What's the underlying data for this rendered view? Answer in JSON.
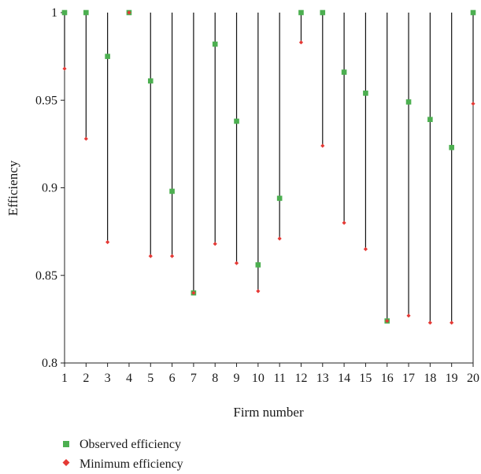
{
  "chart_data": {
    "type": "scatter",
    "title": "",
    "xlabel": "Firm number",
    "ylabel": "Efficiency",
    "ylim": [
      0.8,
      1.0
    ],
    "xlim": [
      1,
      20
    ],
    "yticks": [
      "0.8",
      "0.85",
      "0.9",
      "0.95",
      "1"
    ],
    "x": [
      1,
      2,
      3,
      4,
      5,
      6,
      7,
      8,
      9,
      10,
      11,
      12,
      13,
      14,
      15,
      16,
      17,
      18,
      19,
      20
    ],
    "series": [
      {
        "name": "Observed efficiency",
        "color": "#4caf50",
        "marker": "square",
        "values": [
          1.0,
          1.0,
          0.975,
          1.0,
          0.961,
          0.898,
          0.84,
          0.982,
          0.938,
          0.856,
          0.894,
          1.0,
          1.0,
          0.966,
          0.954,
          0.824,
          0.949,
          0.939,
          0.923,
          1.0
        ]
      },
      {
        "name": "Minimum efficiency",
        "color": "#e53935",
        "marker": "diamond",
        "values": [
          0.968,
          0.928,
          0.869,
          1.0,
          0.861,
          0.861,
          0.84,
          0.868,
          0.857,
          0.841,
          0.871,
          0.983,
          0.924,
          0.88,
          0.865,
          0.824,
          0.827,
          0.823,
          0.823,
          0.948
        ]
      }
    ],
    "range_lines": "from minimum efficiency to 1",
    "legend_position": "bottom-left",
    "grid": false
  }
}
